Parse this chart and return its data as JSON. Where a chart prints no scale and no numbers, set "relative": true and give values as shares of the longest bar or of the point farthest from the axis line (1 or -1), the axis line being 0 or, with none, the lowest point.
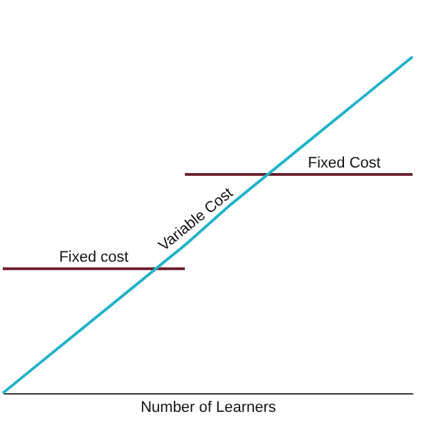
{
  "chart_data": {
    "type": "line",
    "relative": true,
    "xlabel": "Number of Learners",
    "categories": [
      null,
      null,
      null,
      null,
      null,
      null,
      null,
      null,
      null,
      null
    ],
    "series": [
      {
        "color": "#6b1f2c",
        "values": [
          0.37,
          0.37,
          0.37,
          0.37,
          0.37,
          null,
          null,
          null,
          null,
          null
        ]
      },
      {
        "color": "#6b1f2c",
        "values": [
          null,
          null,
          null,
          null,
          0.65,
          0.65,
          0.65,
          0.65,
          0.65,
          0.65
        ]
      },
      {
        "color": "#20b2c8",
        "values": [
          0,
          0.11,
          0.22,
          0.33,
          0.44,
          0.56,
          0.67,
          0.78,
          0.89,
          1
        ]
      }
    ],
    "annotations": [
      {
        "text": "Fixed cost",
        "y": 0.37
      },
      {
        "text": "Fixed Cost",
        "y": 0.65
      },
      {
        "text": "Variable Cost",
        "y": 0.49
      }
    ],
    "legend": false
  }
}
